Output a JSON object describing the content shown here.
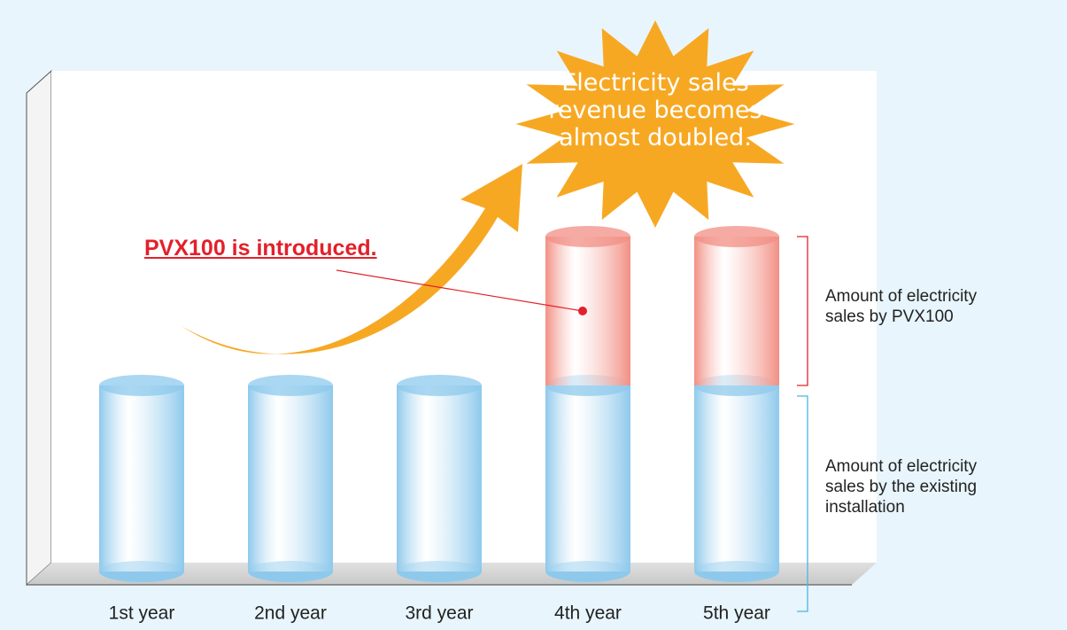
{
  "chart_data": {
    "type": "stacked_bar",
    "categories": [
      "1st year",
      "2nd year",
      "3rd year",
      "4th year",
      "5th year"
    ],
    "series": [
      {
        "name": "Amount of electricity sales by the existing installation",
        "color": "#8ec9ec",
        "values": [
          1,
          1,
          1,
          1,
          1
        ]
      },
      {
        "name": "Amount of electricity sales by PVX100",
        "color": "#f28f84",
        "values": [
          null,
          null,
          null,
          0.8,
          0.8
        ]
      }
    ],
    "annotations": {
      "burst": "Electricity sales revenue becomes almost doubled.",
      "callout": "PVX100 is introduced."
    }
  }
}
